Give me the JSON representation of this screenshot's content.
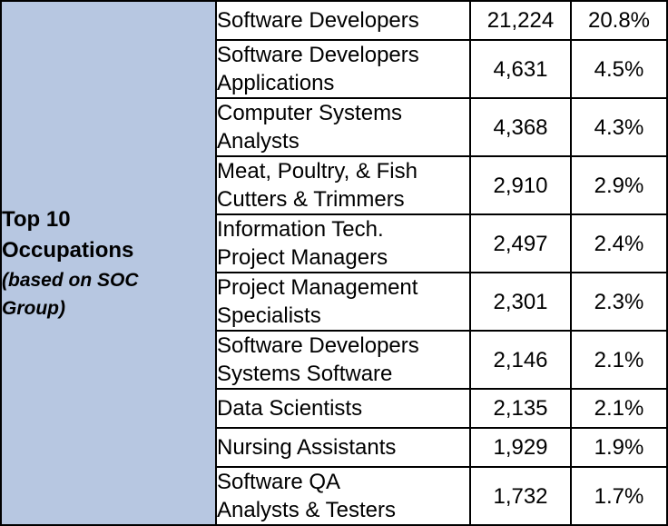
{
  "header": {
    "title_line1": "Top 10",
    "title_line2": "Occupations",
    "subtitle_line1": "(based on SOC",
    "subtitle_line2": "Group)"
  },
  "rows": [
    {
      "name_lines": [
        "Software Developers"
      ],
      "count": "21,224",
      "percent": "20.8%"
    },
    {
      "name_lines": [
        "Software Developers",
        "Applications"
      ],
      "count": "4,631",
      "percent": "4.5%"
    },
    {
      "name_lines": [
        "Computer Systems",
        "Analysts"
      ],
      "count": "4,368",
      "percent": "4.3%"
    },
    {
      "name_lines": [
        "Meat, Poultry, & Fish",
        "Cutters & Trimmers"
      ],
      "count": "2,910",
      "percent": "2.9%"
    },
    {
      "name_lines": [
        "Information Tech.",
        "Project Managers"
      ],
      "count": "2,497",
      "percent": "2.4%"
    },
    {
      "name_lines": [
        "Project Management",
        "Specialists"
      ],
      "count": "2,301",
      "percent": "2.3%"
    },
    {
      "name_lines": [
        "Software Developers",
        "Systems Software"
      ],
      "count": "2,146",
      "percent": "2.1%"
    },
    {
      "name_lines": [
        "Data Scientists"
      ],
      "count": "2,135",
      "percent": "2.1%"
    },
    {
      "name_lines": [
        "Nursing Assistants"
      ],
      "count": "1,929",
      "percent": "1.9%"
    },
    {
      "name_lines": [
        "Software QA",
        "Analysts & Testers"
      ],
      "count": "1,732",
      "percent": "1.7%"
    }
  ],
  "colors": {
    "header_background": "#b7c7e1",
    "border": "#000000"
  }
}
